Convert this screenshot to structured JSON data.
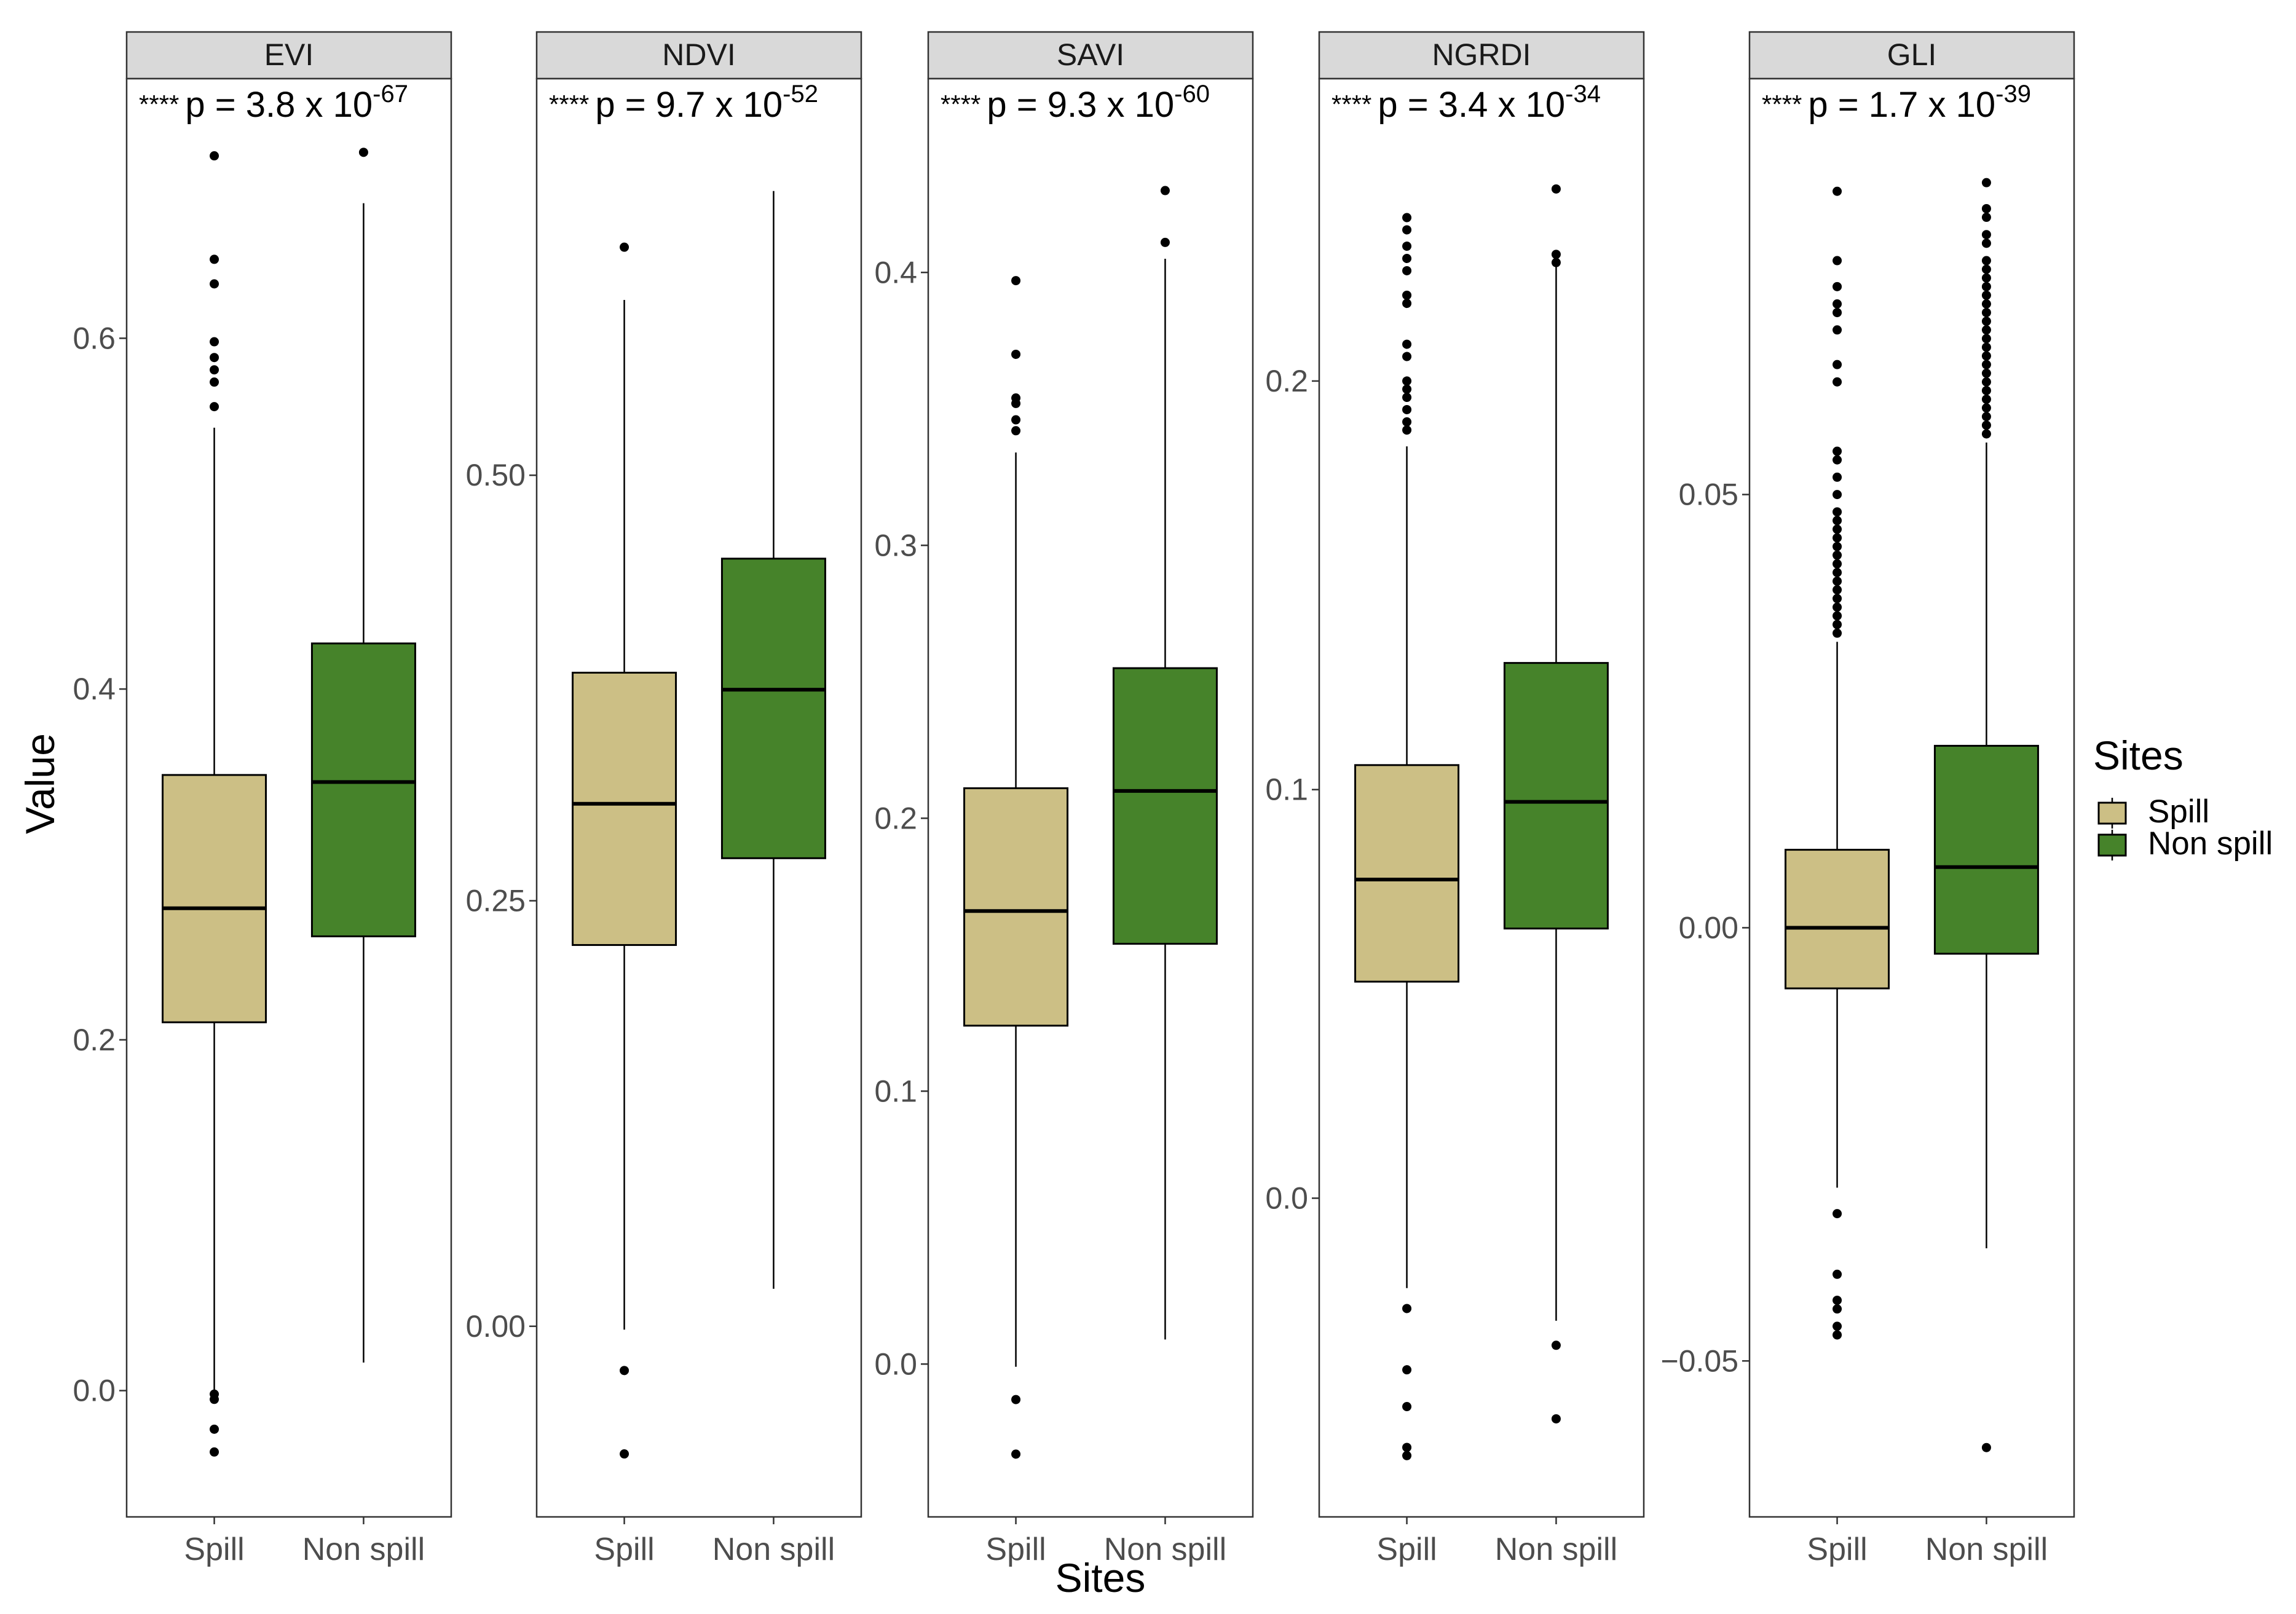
{
  "chart_data": {
    "type": "boxplot",
    "xlabel": "Sites",
    "ylabel": "Value",
    "categories": [
      "Spill",
      "Non spill"
    ],
    "legend": {
      "title": "Sites",
      "position": "right",
      "entries": [
        {
          "name": "Spill",
          "color": "#CCBF85"
        },
        {
          "name": "Non spill",
          "color": "#46832A"
        }
      ]
    },
    "panels": [
      {
        "title": "EVI",
        "annotation": {
          "stars": "****",
          "base": "p = 3.8 x 10",
          "exp": "-67"
        },
        "ylim": [
          -0.072,
          0.748
        ],
        "ticks": [
          0.0,
          0.2,
          0.4,
          0.6
        ],
        "tick_labels": [
          "0.0",
          "0.2",
          "0.4",
          "0.6"
        ],
        "boxes": [
          {
            "name": "Spill",
            "whisker_low": -0.003,
            "q1": 0.21,
            "median": 0.275,
            "q3": 0.351,
            "whisker_high": 0.549,
            "outliers": [
              0.561,
              0.575,
              0.582,
              0.589,
              0.598,
              0.631,
              0.645,
              0.704,
              -0.005,
              -0.002,
              -0.022,
              -0.035
            ]
          },
          {
            "name": "Non spill",
            "whisker_low": 0.016,
            "q1": 0.259,
            "median": 0.347,
            "q3": 0.426,
            "whisker_high": 0.677,
            "outliers": [
              0.706
            ]
          }
        ]
      },
      {
        "title": "NDVI",
        "annotation": {
          "stars": "****",
          "base": "p = 9.7 x 10",
          "exp": "-52"
        },
        "ylim": [
          -0.112,
          0.733
        ],
        "ticks": [
          0.0,
          0.25,
          0.5
        ],
        "tick_labels": [
          "0.00",
          "0.25",
          "0.50"
        ],
        "boxes": [
          {
            "name": "Spill",
            "whisker_low": -0.002,
            "q1": 0.224,
            "median": 0.307,
            "q3": 0.384,
            "whisker_high": 0.603,
            "outliers": [
              0.634,
              -0.026,
              -0.075
            ]
          },
          {
            "name": "Non spill",
            "whisker_low": 0.022,
            "q1": 0.275,
            "median": 0.374,
            "q3": 0.451,
            "whisker_high": 0.667,
            "outliers": []
          }
        ]
      },
      {
        "title": "SAVI",
        "annotation": {
          "stars": "****",
          "base": "p = 9.3 x 10",
          "exp": "-60"
        },
        "ylim": [
          -0.056,
          0.471
        ],
        "ticks": [
          0.0,
          0.1,
          0.2,
          0.3,
          0.4
        ],
        "tick_labels": [
          "0.0",
          "0.1",
          "0.2",
          "0.3",
          "0.4"
        ],
        "boxes": [
          {
            "name": "Spill",
            "whisker_low": -0.001,
            "q1": 0.124,
            "median": 0.166,
            "q3": 0.211,
            "whisker_high": 0.334,
            "outliers": [
              0.342,
              0.346,
              0.352,
              0.354,
              0.37,
              0.397,
              -0.013,
              -0.033
            ]
          },
          {
            "name": "Non spill",
            "whisker_low": 0.009,
            "q1": 0.154,
            "median": 0.21,
            "q3": 0.255,
            "whisker_high": 0.405,
            "outliers": [
              0.411,
              0.43
            ]
          }
        ]
      },
      {
        "title": "NGRDI",
        "annotation": {
          "stars": "****",
          "base": "p = 3.4 x 10",
          "exp": "-34"
        },
        "ylim": [
          -0.078,
          0.274
        ],
        "ticks": [
          0.0,
          0.1,
          0.2
        ],
        "tick_labels": [
          "0.0",
          "0.1",
          "0.2"
        ],
        "boxes": [
          {
            "name": "Spill",
            "whisker_low": -0.022,
            "q1": 0.053,
            "median": 0.078,
            "q3": 0.106,
            "whisker_high": 0.184,
            "outliers": [
              0.188,
              0.19,
              0.193,
              0.196,
              0.198,
              0.2,
              0.206,
              0.209,
              0.219,
              0.221,
              0.227,
              0.23,
              0.233,
              0.237,
              0.24,
              -0.027,
              -0.042,
              -0.051,
              -0.061,
              -0.063
            ]
          },
          {
            "name": "Non spill",
            "whisker_low": -0.03,
            "q1": 0.066,
            "median": 0.097,
            "q3": 0.131,
            "whisker_high": 0.228,
            "outliers": [
              0.229,
              0.231,
              0.247,
              -0.036,
              -0.054
            ]
          }
        ]
      },
      {
        "title": "GLI",
        "annotation": {
          "stars": "****",
          "base": "p = 1.7 x 10",
          "exp": "-39"
        },
        "ylim": [
          -0.068,
          0.098
        ],
        "ticks": [
          -0.05,
          0.0,
          0.05
        ],
        "tick_labels": [
          "−0.05",
          "0.00",
          "0.05"
        ],
        "boxes": [
          {
            "name": "Spill",
            "whisker_low": -0.03,
            "q1": -0.007,
            "median": 0.0,
            "q3": 0.009,
            "whisker_high": 0.033,
            "outliers": [
              0.034,
              0.035,
              0.036,
              0.037,
              0.038,
              0.039,
              0.04,
              0.041,
              0.042,
              0.043,
              0.044,
              0.045,
              0.046,
              0.047,
              0.048,
              0.05,
              0.052,
              0.054,
              0.055,
              0.063,
              0.065,
              0.069,
              0.071,
              0.072,
              0.074,
              0.077,
              0.085,
              -0.033,
              -0.04,
              -0.043,
              -0.044,
              -0.046,
              -0.047
            ]
          },
          {
            "name": "Non spill",
            "whisker_low": -0.037,
            "q1": -0.003,
            "median": 0.007,
            "q3": 0.021,
            "whisker_high": 0.056,
            "outliers": [
              0.057,
              0.058,
              0.059,
              0.06,
              0.061,
              0.062,
              0.063,
              0.064,
              0.065,
              0.066,
              0.067,
              0.068,
              0.069,
              0.07,
              0.071,
              0.072,
              0.073,
              0.074,
              0.075,
              0.076,
              0.077,
              0.079,
              0.08,
              0.082,
              0.083,
              0.086,
              -0.06
            ]
          }
        ]
      }
    ]
  }
}
